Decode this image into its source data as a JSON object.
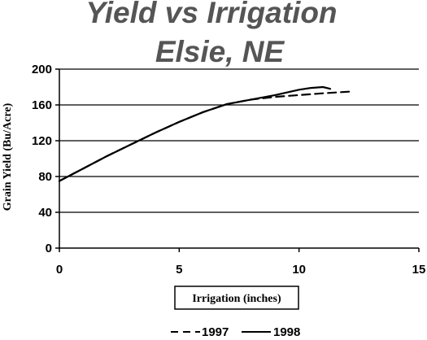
{
  "chart_data": {
    "type": "line",
    "title_line1": "Yield vs Irrigation",
    "title_line2": "Elsie, NE",
    "xlabel": "Irrigation (inches)",
    "ylabel": "Grain Yield (Bu/Acre)",
    "xlim": [
      0,
      15
    ],
    "ylim": [
      0,
      200
    ],
    "x_ticks": [
      0,
      5,
      10,
      15
    ],
    "y_ticks": [
      0,
      40,
      80,
      120,
      160,
      200
    ],
    "x_tick_labels": [
      "0",
      "5",
      "10",
      "15"
    ],
    "y_tick_labels": [
      "0",
      "40",
      "80",
      "120",
      "160",
      "200"
    ],
    "grid": "horizontal",
    "legend_position": "bottom",
    "series": [
      {
        "name": "1997",
        "style": "dashed",
        "color": "#000000",
        "x": [
          0,
          1,
          2,
          3,
          4,
          5,
          6,
          7,
          8,
          9,
          10,
          11,
          12.2
        ],
        "y": [
          75,
          89,
          103,
          116,
          129,
          141,
          152,
          161,
          166,
          169,
          171,
          173,
          175
        ]
      },
      {
        "name": "1998",
        "style": "solid",
        "color": "#000000",
        "x": [
          0,
          1,
          2,
          3,
          4,
          5,
          6,
          7,
          8,
          9,
          10,
          10.5,
          11.0,
          11.3
        ],
        "y": [
          75,
          89,
          103,
          116,
          129,
          141,
          152,
          161,
          166,
          171,
          177,
          179,
          180,
          178
        ]
      }
    ]
  }
}
